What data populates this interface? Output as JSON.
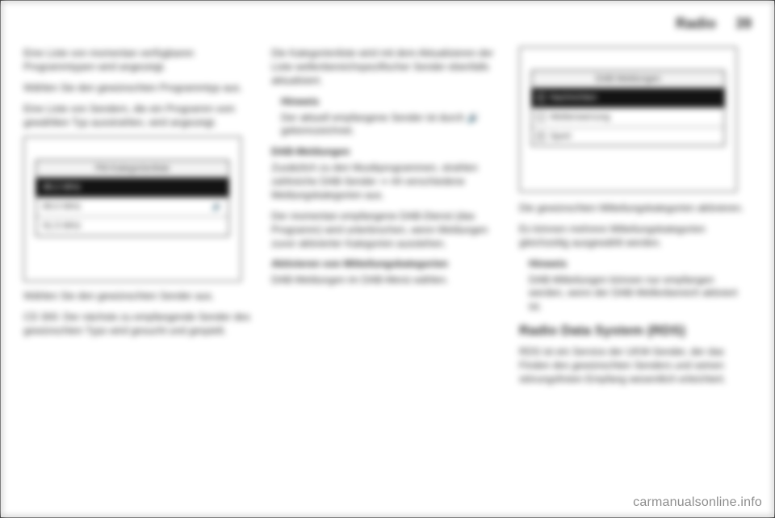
{
  "header": {
    "title": "Radio",
    "page_number": "39"
  },
  "col1": {
    "p1": "Eine Liste von momentan verfügbaren Programmtypen wird angezeigt.",
    "p2": "Wählen Sie den gewünschten Programmtyp aus.",
    "p3": "Eine Liste von Sendern, die ein Programm vom gewählten Typ ausstrahlen, wird angezeigt.",
    "fm": {
      "title": "FM-Kategorienliste",
      "rows": [
        {
          "label": "88.2 MHz",
          "selected": true,
          "speaker": false
        },
        {
          "label": "89.0 MHz",
          "selected": false,
          "speaker": true
        },
        {
          "label": "91.5 MHz",
          "selected": false,
          "speaker": false
        }
      ]
    },
    "p4": "Wählen Sie den gewünschten Sender aus.",
    "p5": "CD 300: Der nächste zu empfangende Sender des gewünschten Typs wird gesucht und gespielt."
  },
  "col2": {
    "p1": "Die Kategorienliste wird mit dem Aktualisieren der Liste wellenbereichspezifischer Sender ebenfalls aktualisiert.",
    "note_h": "Hinweis",
    "note_p": "Der aktuell empfangene Sender ist durch 🔊 gekennzeichnet.",
    "h_dab": "DAB-Meldungen",
    "p2": "Zusätzlich zu den Musikprogrammen, strahlen zahlreiche DAB-Sender ⇒ 44 verschiedene Meldungskategorien aus.",
    "p3": "Der momentan empfangene DAB-Dienst (das Programm) wird unterbrochen, wenn Meldungen zuvor aktivierter Kategorien ausstehen.",
    "h_act": "Aktivieren von Mitteilungskategorien",
    "p4": "DAB-Meldungen im DAB-Menü wählen."
  },
  "col3": {
    "dab": {
      "title": "DAB-Meldungen",
      "rows": [
        {
          "label": "Nachrichten",
          "checked": true,
          "selected": true
        },
        {
          "label": "Wetterwarnung",
          "checked": false,
          "selected": false
        },
        {
          "label": "Sport",
          "checked": true,
          "selected": false
        }
      ]
    },
    "p1": "Die gewünschten Mitteilungskategorien aktivieren.",
    "p2": "Es können mehrere Mitteilungskategorien gleichzeitig ausgewählt werden.",
    "note_h": "Hinweis",
    "note_p": "DAB-Mitteilungen können nur empfangen werden, wenn der DAB-Wellenbereich aktiviert ist.",
    "h_rds": "Radio Data System (RDS)",
    "p3": "RDS ist ein Service der UKW-Sender, der das Finden des gewünschten Senders und seinen störungsfreien Empfang wesentlich erleichtert."
  },
  "watermark": "carmanualsonline.info"
}
